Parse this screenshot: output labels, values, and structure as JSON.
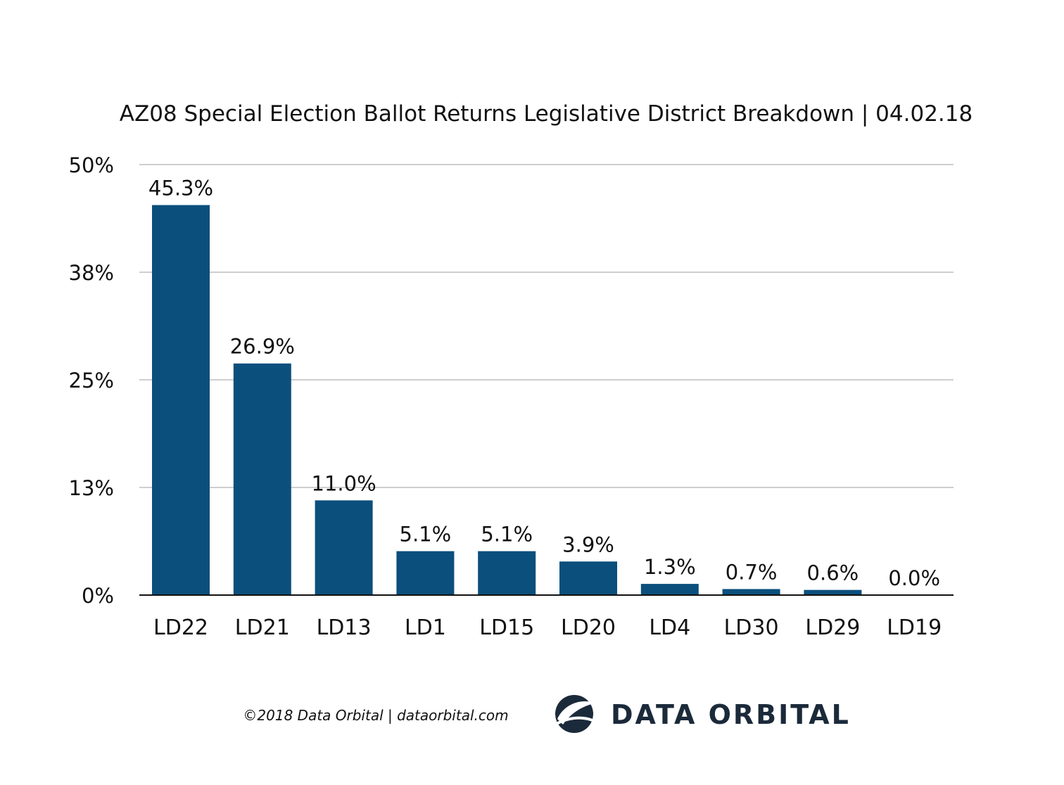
{
  "chart_data": {
    "type": "bar",
    "title": "AZ08 Special Election Ballot Returns Legislative District Breakdown | 04.02.18",
    "categories": [
      "LD22",
      "LD21",
      "LD13",
      "LD1",
      "LD15",
      "LD20",
      "LD4",
      "LD30",
      "LD29",
      "LD19"
    ],
    "values": [
      45.3,
      26.9,
      11.0,
      5.1,
      5.1,
      3.9,
      1.3,
      0.7,
      0.6,
      0.0
    ],
    "data_labels": [
      "45.3%",
      "26.9%",
      "11.0%",
      "5.1%",
      "5.1%",
      "3.9%",
      "1.3%",
      "0.7%",
      "0.6%",
      "0.0%"
    ],
    "yticks": [
      0,
      12.5,
      25,
      37.5,
      50
    ],
    "ytick_labels": [
      "0%",
      "13%",
      "25%",
      "38%",
      "50%"
    ],
    "ylim": [
      0,
      50
    ],
    "xlabel": "",
    "ylabel": "",
    "grid": true,
    "legend": "none",
    "bar_color": "#0b4f7c"
  },
  "footer": {
    "credit": "©2018 Data Orbital | dataorbital.com",
    "brand": "DATA ORBITAL",
    "logo_icon": "orbital-globe-icon",
    "brand_color": "#1b2a3a"
  }
}
